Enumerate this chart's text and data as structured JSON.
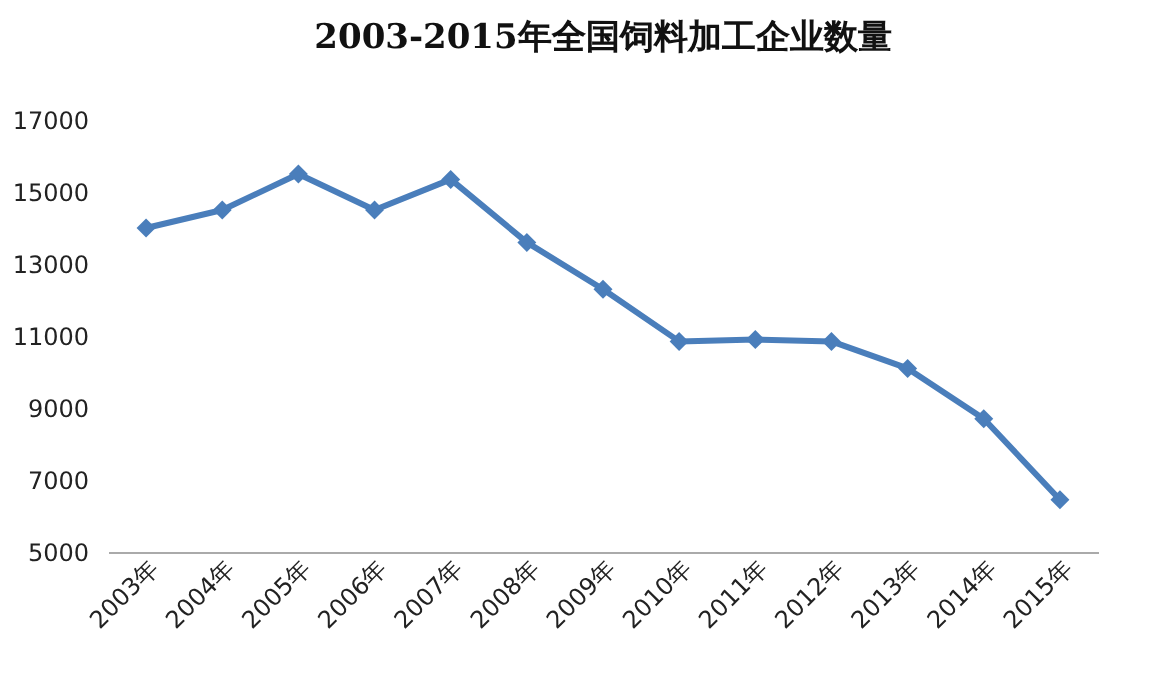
{
  "chart_data": {
    "type": "line",
    "title": "2003-2015年全国饲料加工企业数量",
    "categories": [
      "2003年",
      "2004年",
      "2005年",
      "2006年",
      "2007年",
      "2008年",
      "2009年",
      "2010年",
      "2011年",
      "2012年",
      "2013年",
      "2014年",
      "2015年"
    ],
    "series": [
      {
        "color": "#4a7ebb",
        "values": [
          14000,
          14500,
          15500,
          14500,
          15350,
          13600,
          12300,
          10850,
          10900,
          10850,
          10100,
          8700,
          6450
        ]
      }
    ],
    "ylim": [
      5000,
      17000
    ],
    "yticks": [
      5000,
      7000,
      9000,
      11000,
      13000,
      15000,
      17000
    ],
    "grid": false,
    "marker": "diamond",
    "line_style": "solid"
  }
}
